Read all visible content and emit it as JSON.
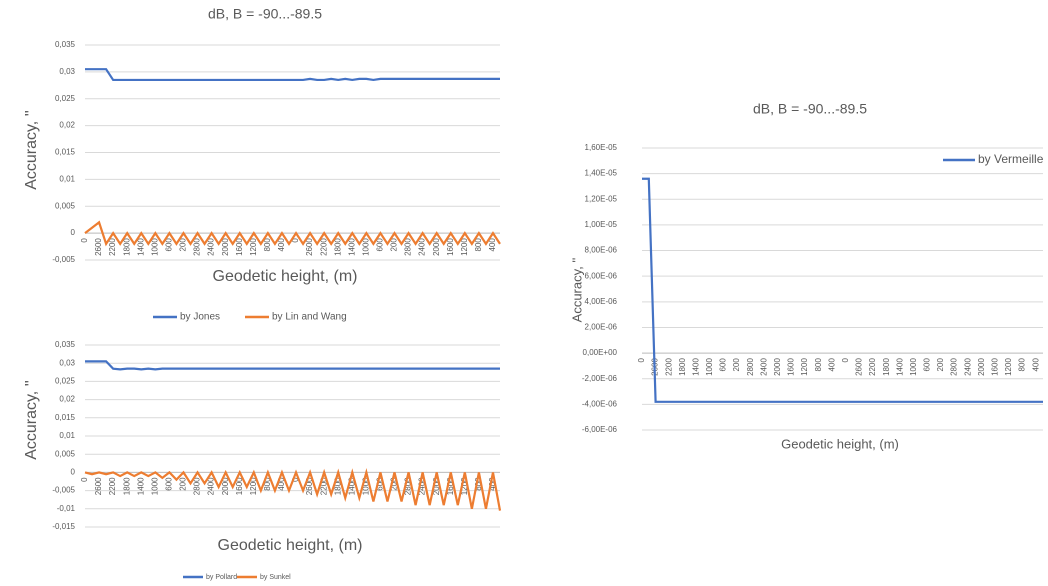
{
  "chart_data": [
    {
      "type": "line",
      "title": "dB, B = -90...-89.5",
      "y_label": "Accuracy, ''",
      "x_label": "Geodetic height, (m)",
      "categories": [
        "0",
        null,
        "2600",
        null,
        "2200",
        null,
        "1800",
        null,
        "1400",
        null,
        "1000",
        null,
        "600",
        null,
        "200",
        null,
        "2800",
        null,
        "2400",
        null,
        "2000",
        null,
        "1600",
        null,
        "1200",
        null,
        "800",
        null,
        "400",
        null,
        "0",
        null,
        "2600",
        null,
        "2200",
        null,
        "1800",
        null,
        "1400",
        null,
        "1000",
        null,
        "600",
        null,
        "200",
        null,
        "2800",
        null,
        "2400",
        null,
        "2000",
        null,
        "1600",
        null,
        "1200",
        null,
        "800",
        null,
        "400",
        null
      ],
      "series": [
        {
          "name": "by Jones",
          "color": "#4472c4",
          "values": [
            0.0305,
            0.0305,
            0.0305,
            0.0305,
            0.0285,
            0.0285,
            0.0285,
            0.0285,
            0.0285,
            0.0285,
            0.0285,
            0.0285,
            0.0285,
            0.0285,
            0.0285,
            0.0285,
            0.0285,
            0.0285,
            0.0285,
            0.0285,
            0.0285,
            0.0285,
            0.0285,
            0.0285,
            0.0285,
            0.0285,
            0.0285,
            0.0285,
            0.0285,
            0.0285,
            0.0285,
            0.0285,
            0.0287,
            0.0285,
            0.0285,
            0.0287,
            0.0285,
            0.0287,
            0.0285,
            0.0287,
            0.0287,
            0.0285,
            0.0287,
            0.0287,
            0.0287,
            0.0287,
            0.0287,
            0.0287,
            0.0287,
            0.0287,
            0.0287,
            0.0287,
            0.0287,
            0.0287,
            0.0287,
            0.0287,
            0.0287,
            0.0287,
            0.0287,
            0.0287
          ]
        },
        {
          "name": "by Lin and Wang",
          "color": "#ed7d31",
          "values": [
            0,
            0.001,
            0.002,
            -0.002,
            0,
            -0.002,
            0,
            -0.002,
            0,
            -0.002,
            0,
            -0.002,
            0,
            -0.002,
            0,
            -0.002,
            0,
            -0.002,
            0,
            -0.002,
            0,
            -0.002,
            0,
            -0.002,
            0,
            -0.002,
            0,
            -0.002,
            0,
            -0.002,
            0,
            -0.002,
            0,
            -0.002,
            0,
            -0.002,
            0,
            -0.002,
            0,
            -0.002,
            0,
            -0.002,
            0,
            -0.002,
            0,
            -0.002,
            0,
            -0.002,
            0,
            -0.002,
            0,
            -0.002,
            0,
            -0.002,
            0,
            -0.002,
            0,
            -0.002,
            0,
            -0.002
          ]
        }
      ],
      "ylim": [
        -0.005,
        0.035
      ],
      "yticks": [
        {
          "value": 0.035,
          "label": "0,035"
        },
        {
          "value": 0.03,
          "label": "0,03"
        },
        {
          "value": 0.025,
          "label": "0,025"
        },
        {
          "value": 0.02,
          "label": "0,02"
        },
        {
          "value": 0.015,
          "label": "0,015"
        },
        {
          "value": 0.01,
          "label": "0,01"
        },
        {
          "value": 0.005,
          "label": "0,005"
        },
        0,
        {
          "value": -0.005,
          "label": "-0,005"
        }
      ],
      "grid": true,
      "legend": "bottom"
    },
    {
      "type": "line",
      "y_label": "Accuracy, ''",
      "x_label": "Geodetic height, (m)",
      "categories": [
        "0",
        null,
        "2600",
        null,
        "2200",
        null,
        "1800",
        null,
        "1400",
        null,
        "1000",
        null,
        "600",
        null,
        "200",
        null,
        "2800",
        null,
        "2400",
        null,
        "2000",
        null,
        "1600",
        null,
        "1200",
        null,
        "800",
        null,
        "400",
        null,
        "0",
        null,
        "2600",
        null,
        "2200",
        null,
        "1800",
        null,
        "1400",
        null,
        "1000",
        null,
        "600",
        null,
        "200",
        null,
        "2800",
        null,
        "2400",
        null,
        "2000",
        null,
        "1600",
        null,
        "1200",
        null,
        "800",
        null,
        "400",
        null
      ],
      "series": [
        {
          "name": "by Pollard",
          "color": "#4472c4",
          "values": [
            0.0305,
            0.0305,
            0.0305,
            0.0305,
            0.0285,
            0.0283,
            0.0285,
            0.0285,
            0.0283,
            0.0285,
            0.0283,
            0.0285,
            0.0285,
            0.0285,
            0.0285,
            0.0285,
            0.0285,
            0.0285,
            0.0285,
            0.0285,
            0.0285,
            0.0285,
            0.0285,
            0.0285,
            0.0285,
            0.0285,
            0.0285,
            0.0285,
            0.0285,
            0.0285,
            0.0285,
            0.0285,
            0.0285,
            0.0285,
            0.0285,
            0.0285,
            0.0285,
            0.0285,
            0.0285,
            0.0285,
            0.0285,
            0.0285,
            0.0285,
            0.0285,
            0.0285,
            0.0285,
            0.0285,
            0.0285,
            0.0285,
            0.0285,
            0.0285,
            0.0285,
            0.0285,
            0.0285,
            0.0285,
            0.0285,
            0.0285,
            0.0285,
            0.0285,
            0.0285
          ]
        },
        {
          "name": "by Sunkel",
          "color": "#ed7d31",
          "values": [
            0,
            -0.0005,
            0,
            -0.0005,
            0,
            -0.001,
            0,
            -0.001,
            0,
            -0.001,
            0,
            -0.0015,
            0,
            -0.002,
            0,
            -0.003,
            0,
            -0.003,
            0,
            -0.004,
            0,
            -0.004,
            0,
            -0.004,
            0,
            -0.005,
            0,
            -0.005,
            0,
            -0.005,
            0,
            -0.005,
            0,
            -0.006,
            0,
            -0.006,
            0,
            -0.007,
            0,
            -0.007,
            0,
            -0.008,
            0,
            -0.008,
            0,
            -0.008,
            0,
            -0.009,
            0,
            -0.009,
            0,
            -0.009,
            0,
            -0.009,
            0,
            -0.01,
            0,
            -0.01,
            0,
            -0.0105
          ]
        }
      ],
      "ylim": [
        -0.015,
        0.035
      ],
      "yticks": [
        {
          "value": 0.035,
          "label": "0,035"
        },
        {
          "value": 0.03,
          "label": "0,03"
        },
        {
          "value": 0.025,
          "label": "0,025"
        },
        {
          "value": 0.02,
          "label": "0,02"
        },
        {
          "value": 0.015,
          "label": "0,015"
        },
        {
          "value": 0.01,
          "label": "0,01"
        },
        {
          "value": 0.005,
          "label": "0,005"
        },
        0,
        {
          "value": -0.005,
          "label": "-0,005"
        },
        {
          "value": -0.01,
          "label": "-0,01"
        },
        {
          "value": -0.015,
          "label": "-0,015"
        }
      ],
      "grid": true,
      "legend": "bottom"
    },
    {
      "type": "line",
      "title": "dB, B = -90...-89.5",
      "y_label": "Accuracy, ''",
      "x_label": "Geodetic height, (m)",
      "categories": [
        "0",
        null,
        "2600",
        null,
        "2200",
        null,
        "1800",
        null,
        "1400",
        null,
        "1000",
        null,
        "600",
        null,
        "200",
        null,
        "2800",
        null,
        "2400",
        null,
        "2000",
        null,
        "1600",
        null,
        "1200",
        null,
        "800",
        null,
        "400",
        null,
        "0",
        null,
        "2600",
        null,
        "2200",
        null,
        "1800",
        null,
        "1400",
        null,
        "1000",
        null,
        "600",
        null,
        "200",
        null,
        "2800",
        null,
        "2400",
        null,
        "2000",
        null,
        "1600",
        null,
        "1200",
        null,
        "800",
        null,
        "400",
        null
      ],
      "series": [
        {
          "name": "by Vermeille",
          "color": "#4472c4",
          "values": [
            1.36e-05,
            1.36e-05,
            -3.8e-06,
            -3.8e-06,
            -3.8e-06,
            -3.8e-06,
            -3.8e-06,
            -3.8e-06,
            -3.8e-06,
            -3.8e-06,
            -3.8e-06,
            -3.8e-06,
            -3.8e-06,
            -3.8e-06,
            -3.8e-06,
            -3.8e-06,
            -3.8e-06,
            -3.8e-06,
            -3.8e-06,
            -3.8e-06,
            -3.8e-06,
            -3.8e-06,
            -3.8e-06,
            -3.8e-06,
            -3.8e-06,
            -3.8e-06,
            -3.8e-06,
            -3.8e-06,
            -3.8e-06,
            -3.8e-06,
            -3.8e-06,
            -3.8e-06,
            -3.8e-06,
            -3.8e-06,
            -3.8e-06,
            -3.8e-06,
            -3.8e-06,
            -3.8e-06,
            -3.8e-06,
            -3.8e-06,
            -3.8e-06,
            -3.8e-06,
            -3.8e-06,
            -3.8e-06,
            -3.8e-06,
            -3.8e-06,
            -3.8e-06,
            -3.8e-06,
            -3.8e-06,
            -3.8e-06,
            -3.8e-06,
            -3.8e-06,
            -3.8e-06,
            -3.8e-06,
            -3.8e-06,
            -3.8e-06,
            -3.8e-06,
            -3.8e-06,
            -3.8e-06,
            -3.8e-06
          ]
        }
      ],
      "ylim": [
        -6e-06,
        1.6e-05
      ],
      "yticks": [
        {
          "value": 1.6e-05,
          "label": "1,60E-05"
        },
        {
          "value": 1.4e-05,
          "label": "1,40E-05"
        },
        {
          "value": 1.2e-05,
          "label": "1,20E-05"
        },
        {
          "value": 1e-05,
          "label": "1,00E-05"
        },
        {
          "value": 8e-06,
          "label": "8,00E-06"
        },
        {
          "value": 6e-06,
          "label": "6,00E-06"
        },
        {
          "value": 4e-06,
          "label": "4,00E-06"
        },
        {
          "value": 2e-06,
          "label": "2,00E-06"
        },
        {
          "value": 0,
          "label": "0,00E+00"
        },
        {
          "value": -2e-06,
          "label": "-2,00E-06"
        },
        {
          "value": -4e-06,
          "label": "-4,00E-06"
        },
        {
          "value": -6e-06,
          "label": "-6,00E-06"
        }
      ],
      "grid": true,
      "legend": "top-right"
    }
  ]
}
